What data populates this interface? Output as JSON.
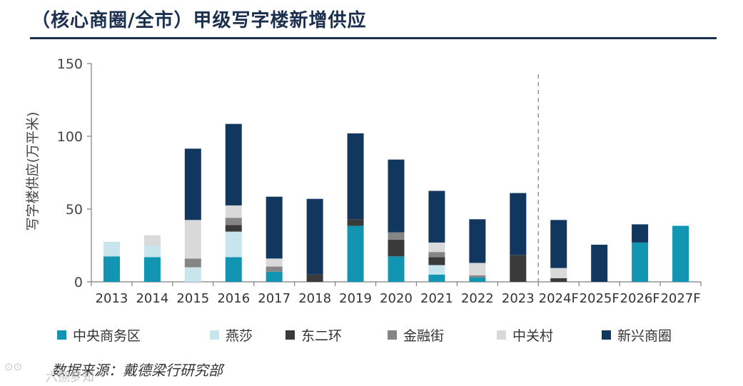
{
  "title": "（核心商圈/全市）甲级写字楼新增供应",
  "source": "数据来源：戴德梁行研究部",
  "watermark": {
    "icon": "watermark-icon",
    "text": "六捌梦知"
  },
  "chart_data": {
    "type": "bar",
    "stacked": true,
    "ylabel": "写字楼供应(万平米)",
    "xlabel": "",
    "ylim": [
      0,
      150
    ],
    "yticks": [
      0,
      50,
      100,
      150
    ],
    "legend_position": "bottom",
    "forecast_divider_after": "2023",
    "categories": [
      "2013",
      "2014",
      "2015",
      "2016",
      "2017",
      "2018",
      "2019",
      "2020",
      "2021",
      "2022",
      "2023",
      "2024F",
      "2025F",
      "2026F",
      "2027F"
    ],
    "series": [
      {
        "name": "中央商务区",
        "color": "#1295b3",
        "values": [
          17.5,
          17,
          0,
          17,
          7,
          0,
          38.5,
          17.5,
          5,
          3,
          0,
          0,
          0,
          27,
          38.5
        ]
      },
      {
        "name": "燕莎",
        "color": "#c8e4ec",
        "values": [
          10,
          8,
          10,
          17.5,
          0,
          0,
          0,
          0,
          6.5,
          0,
          0,
          0,
          0,
          0,
          0
        ]
      },
      {
        "name": "东二环",
        "color": "#3a3a3a",
        "values": [
          0,
          0,
          0,
          4.5,
          0,
          5,
          4.5,
          11.5,
          5.5,
          0,
          18.5,
          2.5,
          0,
          0,
          0
        ]
      },
      {
        "name": "金融街",
        "color": "#858585",
        "values": [
          0,
          0,
          6,
          5,
          3.5,
          0,
          0,
          5,
          3.5,
          1.5,
          0,
          0,
          0,
          0,
          0
        ]
      },
      {
        "name": "中关村",
        "color": "#d9d9d9",
        "values": [
          0,
          7,
          26.5,
          8.5,
          5.5,
          0,
          0,
          0,
          6.5,
          8.5,
          0,
          7,
          0,
          0,
          0
        ]
      },
      {
        "name": "新兴商圈",
        "color": "#12375f",
        "values": [
          0,
          0,
          49,
          56,
          42.5,
          52,
          59,
          50,
          35.5,
          30,
          42.5,
          33,
          25.5,
          12.5,
          0
        ]
      }
    ]
  }
}
